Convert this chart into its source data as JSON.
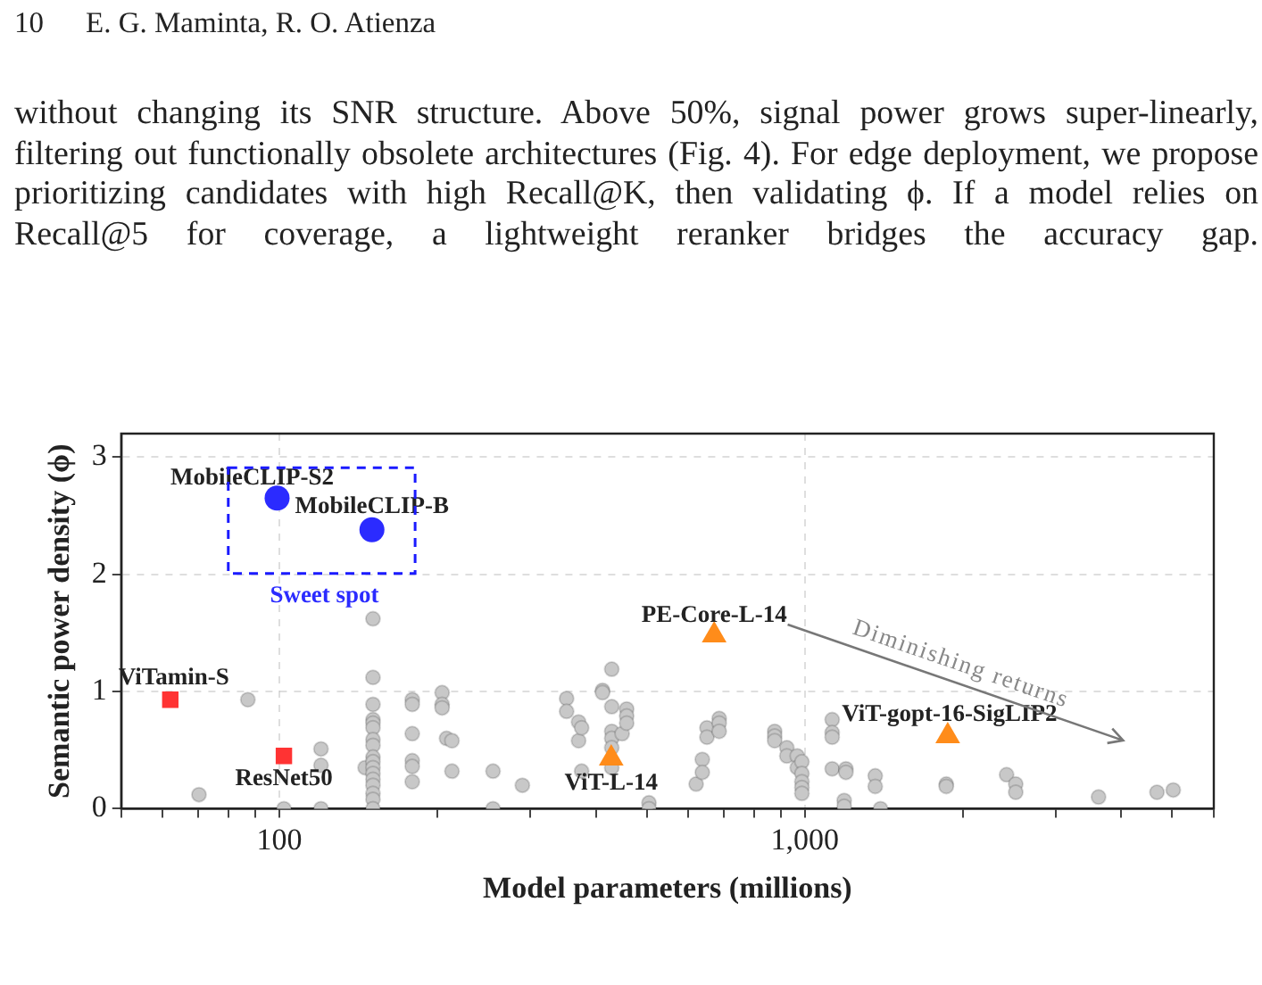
{
  "chart_data": {
    "type": "scatter",
    "xlabel": "Model parameters (millions)",
    "ylabel": "Semantic power density (ϕ)",
    "annotations": [
      "10",
      "E. G. Maminta, R. O. Atienza",
      "without changing its SNR structure. Above 50%, signal power grows super-linearly, filtering out functionally obsolete architectures (Fig. 4). For edge deployment, we propose prioritizing candidates with high Recall@K, then validating ϕ. If a model relies on Recall@5 for coverage, a lightweight reranker bridges the accuracy gap.",
      "Sweet spot",
      "Diminishing returns"
    ],
    "log": "x",
    "grid": true,
    "legend": false,
    "xlim": [
      50,
      6000
    ],
    "ylim": [
      0,
      3.2
    ],
    "xticks": [
      {
        "value": 50,
        "label": null
      },
      {
        "value": 60,
        "label": null
      },
      {
        "value": 70,
        "label": null
      },
      {
        "value": 80,
        "label": null
      },
      {
        "value": 90,
        "label": null
      },
      100,
      {
        "value": 200,
        "label": null
      },
      {
        "value": 300,
        "label": null
      },
      {
        "value": 400,
        "label": null
      },
      {
        "value": 500,
        "label": null
      },
      {
        "value": 600,
        "label": null
      },
      {
        "value": 700,
        "label": null
      },
      {
        "value": 800,
        "label": null
      },
      {
        "value": 900,
        "label": null
      },
      {
        "value": 1000,
        "label": "1,000"
      },
      {
        "value": 2000,
        "label": null
      },
      {
        "value": 3000,
        "label": null
      },
      {
        "value": 4000,
        "label": null
      },
      {
        "value": 5000,
        "label": null
      },
      {
        "value": 6000,
        "label": null
      }
    ],
    "yticks": [
      0,
      1,
      2,
      3
    ],
    "series": [
      {
        "color": "#c8c8c8",
        "marker": "circle",
        "x": [
          70.3,
          87.1,
          102,
          120,
          120,
          120,
          145.6,
          150.7,
          150.7,
          150.7,
          150.7,
          150.7,
          150.7,
          150.7,
          150.7,
          150.7,
          150.7,
          150.7,
          150.7,
          150.7,
          150.7,
          150.7,
          150.7,
          150.7,
          179,
          179,
          179,
          179,
          179,
          179,
          204,
          204,
          204,
          208,
          213,
          213,
          255,
          255,
          290,
          352,
          352,
          371,
          371,
          376,
          376,
          412,
          412,
          429,
          429,
          429,
          429,
          429,
          429,
          449,
          458,
          458,
          458,
          505,
          505,
          621,
          638,
          638,
          651,
          651,
          687,
          687,
          687,
          876,
          876,
          876,
          924,
          924,
          967,
          967,
          987,
          987,
          987,
          987,
          987,
          1127,
          1127,
          1127,
          1127,
          1197,
          1197,
          1188,
          1188,
          1361,
          1361,
          1393,
          1858,
          1858,
          2420,
          2519,
          2519,
          3621,
          4677,
          5023
        ],
        "values": [
          0.12,
          0.93,
          0,
          0.51,
          0.37,
          0,
          0.35,
          1.62,
          1.12,
          0.89,
          0.76,
          0.73,
          0.69,
          0.59,
          0.54,
          0.44,
          0.4,
          0.35,
          0.3,
          0.25,
          0.2,
          0.13,
          0.08,
          0,
          0.93,
          0.89,
          0.64,
          0.41,
          0.36,
          0.23,
          0.99,
          0.89,
          0.86,
          0.6,
          0.58,
          0.32,
          0.32,
          0,
          0.2,
          0.94,
          0.83,
          0.74,
          0.58,
          0.69,
          0.32,
          1.01,
          0.99,
          1.19,
          0.87,
          0.66,
          0.6,
          0.52,
          0.35,
          0.64,
          0.85,
          0.79,
          0.73,
          0.05,
          0,
          0.21,
          0.42,
          0.31,
          0.69,
          0.61,
          0.77,
          0.73,
          0.66,
          0.66,
          0.62,
          0.58,
          0.52,
          0.45,
          0.45,
          0.35,
          0.4,
          0.3,
          0.23,
          0.18,
          0.13,
          0.76,
          0.65,
          0.61,
          0.34,
          0.34,
          0.31,
          0.07,
          0.02,
          0.28,
          0.19,
          0,
          0.21,
          0.19,
          0.29,
          0.21,
          0.14,
          0.1,
          0.14,
          0.16
        ]
      },
      {
        "name": "MobileCLIP-S2",
        "color": "#2b2bff",
        "marker": "circle",
        "x": [
          99
        ],
        "values": [
          2.65
        ]
      },
      {
        "name": "MobileCLIP-B",
        "color": "#2b2bff",
        "marker": "circle",
        "x": [
          150
        ],
        "values": [
          2.38
        ]
      },
      {
        "name": "ViTamin-S",
        "color": "#ff3333",
        "marker": "square",
        "x": [
          62
        ],
        "values": [
          0.93
        ]
      },
      {
        "name": "ResNet50",
        "color": "#ff3333",
        "marker": "square",
        "x": [
          102
        ],
        "values": [
          0.45
        ]
      },
      {
        "name": "ViT-L-14",
        "color": "#ff8c1a",
        "marker": "triangle",
        "x": [
          428
        ],
        "values": [
          0.43
        ]
      },
      {
        "name": "PE-Core-L-14",
        "color": "#ff8c1a",
        "marker": "triangle",
        "x": [
          672
        ],
        "values": [
          1.48
        ]
      },
      {
        "name": "ViT-gopt-16-SigLIP2",
        "color": "#ff8c1a",
        "marker": "triangle",
        "x": [
          1870
        ],
        "values": [
          0.62
        ]
      }
    ]
  }
}
